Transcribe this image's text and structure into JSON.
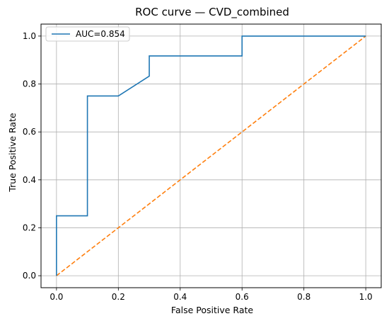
{
  "chart_data": {
    "type": "line",
    "title": "ROC curve — CVD_combined",
    "xlabel": "False Positive Rate",
    "ylabel": "True Positive Rate",
    "xlim": [
      -0.05,
      1.05
    ],
    "ylim": [
      -0.05,
      1.05
    ],
    "xticks": [
      0.0,
      0.2,
      0.4,
      0.6,
      0.8,
      1.0
    ],
    "yticks": [
      0.0,
      0.2,
      0.4,
      0.6,
      0.8,
      1.0
    ],
    "xtick_labels": [
      "0.0",
      "0.2",
      "0.4",
      "0.6",
      "0.8",
      "1.0"
    ],
    "ytick_labels": [
      "0.0",
      "0.2",
      "0.4",
      "0.6",
      "0.8",
      "1.0"
    ],
    "grid": true,
    "legend_position": "top-left",
    "series": [
      {
        "name": "AUC=0.854",
        "color": "#1f77b4",
        "style": "solid",
        "x": [
          0.0,
          0.0,
          0.1,
          0.1,
          0.2,
          0.3,
          0.3,
          0.6,
          0.6,
          1.0
        ],
        "y": [
          0.0,
          0.25,
          0.25,
          0.75,
          0.75,
          0.833,
          0.917,
          0.917,
          1.0,
          1.0
        ]
      },
      {
        "color": "#ff7f0e",
        "style": "dashed",
        "x": [
          0.0,
          1.0
        ],
        "y": [
          0.0,
          1.0
        ]
      }
    ]
  }
}
